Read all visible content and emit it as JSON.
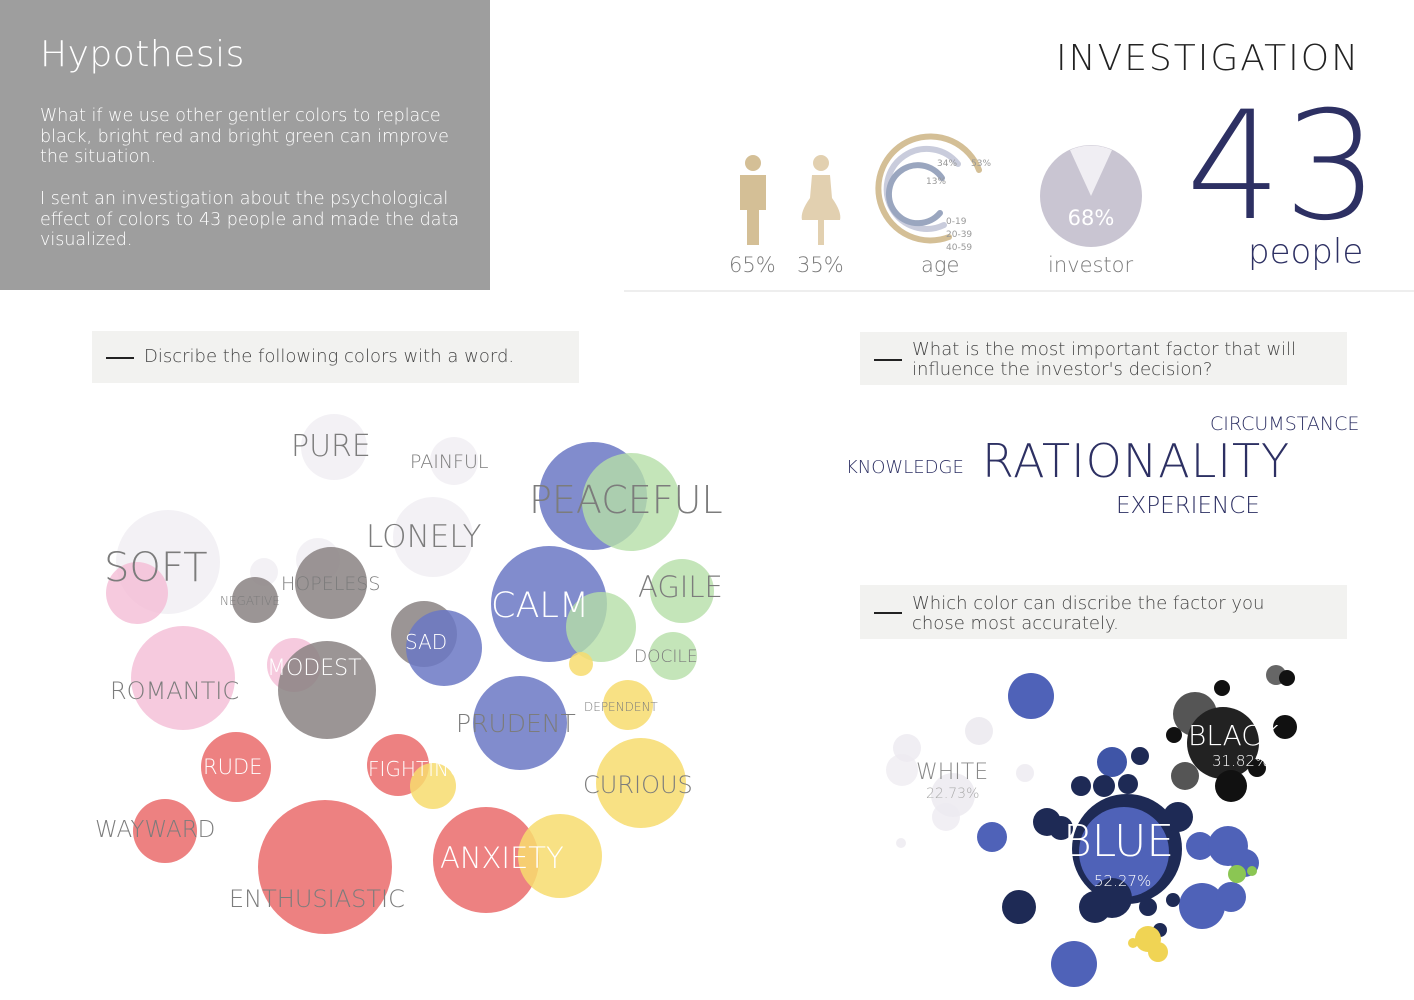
{
  "hypothesis": {
    "title": "Hypothesis",
    "paragraph1": "What if we use other gentler colors to replace black, bright red and bright green can improve the situation.",
    "paragraph2": "I sent an investigation about the psychological effect of colors to 43 people and made the data visualized."
  },
  "investigation": {
    "title": "INVESTIGATION",
    "male_pct": "65%",
    "female_pct": "35%",
    "age_label": "age",
    "age_pct_labels": [
      "34%",
      "53%",
      "13%"
    ],
    "age_groups": [
      "0-19",
      "20-39",
      "40-59"
    ],
    "investor_pct": "68%",
    "investor_label": "investor",
    "people_count": "43",
    "people_label": "people"
  },
  "colors": {
    "male": "#d4bf96",
    "female": "#e2d0b0",
    "pie": "#c9c5d2",
    "navy": "#2d3063",
    "blue": "#6b78c4",
    "green": "#b5dfa7",
    "pink": "#f4bdd6",
    "grey": "#8a8383",
    "red": "#ea6b6b",
    "yellow": "#f7dc6f",
    "white": "#eceaf0",
    "black": "#111111"
  },
  "q1": {
    "text": "Discribe the following colors with a word."
  },
  "q2": {
    "text": "What is the most important factor that will influence the investor's decision?"
  },
  "q3": {
    "text": "Which color can discribe the factor you chose most accurately."
  },
  "factors": {
    "main": "RATIONALITY",
    "others": [
      "CIRCUMSTANCE",
      "KNOWLEDGE",
      "EXPERIENCE"
    ]
  },
  "chart_data": [
    {
      "type": "pie",
      "labels": [
        "",
        ""
      ],
      "values": [
        65,
        35
      ],
      "value_labels": [
        "65%",
        "35%"
      ]
    },
    {
      "type": "bar",
      "title": "age",
      "categories": [
        "0-19",
        "20-39",
        "40-59"
      ],
      "values": [
        34,
        53,
        13
      ],
      "value_labels": [
        "34%",
        "53%",
        "13%"
      ]
    },
    {
      "type": "pie",
      "title": "investor",
      "values": [
        68,
        32
      ],
      "value_labels": [
        "68%"
      ]
    },
    {
      "type": "scatter",
      "title": "Discribe the following colors with a word.",
      "words": [
        {
          "word": "PURE",
          "color": "white"
        },
        {
          "word": "PAINFUL",
          "color": "white"
        },
        {
          "word": "PEACEFUL",
          "color": "blue/green"
        },
        {
          "word": "SOFT",
          "color": "white/pink"
        },
        {
          "word": "LONELY",
          "color": "white"
        },
        {
          "word": "HOPELESS",
          "color": "grey"
        },
        {
          "word": "NEGATIVE",
          "color": "grey"
        },
        {
          "word": "AGILE",
          "color": "green"
        },
        {
          "word": "CALM",
          "color": "blue/green"
        },
        {
          "word": "SAD",
          "color": "blue/grey"
        },
        {
          "word": "DOCILE",
          "color": "green"
        },
        {
          "word": "ROMANTIC",
          "color": "pink"
        },
        {
          "word": "MODEST",
          "color": "grey/pink"
        },
        {
          "word": "PRUDENT",
          "color": "blue"
        },
        {
          "word": "DEPENDENT",
          "color": "yellow"
        },
        {
          "word": "RUDE",
          "color": "red"
        },
        {
          "word": "FIGHTING",
          "color": "red/yellow"
        },
        {
          "word": "CURIOUS",
          "color": "yellow"
        },
        {
          "word": "WAYWARD",
          "color": "red"
        },
        {
          "word": "ANXIETY",
          "color": "red/yellow"
        },
        {
          "word": "ENTHUSIASTIC",
          "color": "red"
        }
      ]
    },
    {
      "type": "scatter",
      "title": "Which color can discribe the factor you chose most accurately.",
      "groups": [
        {
          "name": "BLUE",
          "value": 52.27,
          "label": "52.27%"
        },
        {
          "name": "BLACK",
          "value": 31.82,
          "label": "31.82%"
        },
        {
          "name": "WHITE",
          "value": 22.73,
          "label": "22.73%"
        }
      ]
    }
  ]
}
